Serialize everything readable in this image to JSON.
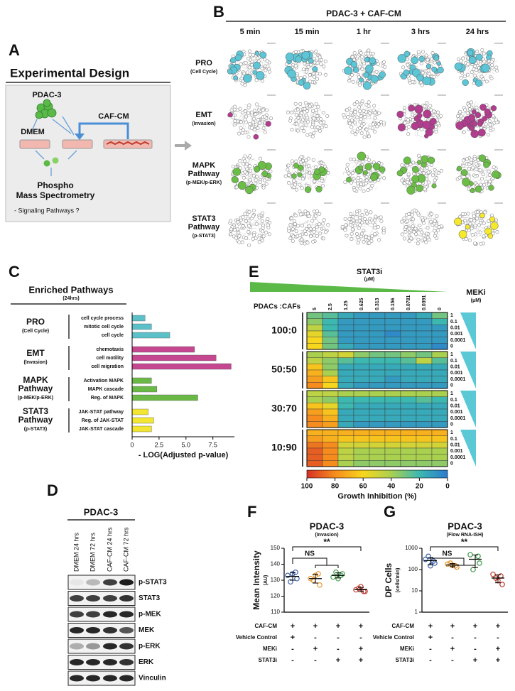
{
  "panel_a": {
    "letter": "A",
    "title": "Experimental Design",
    "cells": "PDAC-3",
    "control": "DMEM",
    "treatment": "CAF-CM",
    "output": [
      "Phospho",
      "Mass Spectrometry"
    ],
    "question": "- Signaling Pathways ?"
  },
  "panel_b": {
    "letter": "B",
    "title": "PDAC-3 + CAF-CM",
    "columns": [
      "5 min",
      "15 min",
      "1 hr",
      "3 hrs",
      "24 hrs"
    ],
    "rows": [
      {
        "name": [
          "PRO"
        ],
        "sub": "(Cell Cycle)",
        "color": "#5cc5d6"
      },
      {
        "name": [
          "EMT"
        ],
        "sub": "(Invasion)",
        "color": "#b23c8e"
      },
      {
        "name": [
          "MAPK",
          "Pathway"
        ],
        "sub": "(p-MEK/p-ERK)",
        "color": "#6abd45"
      },
      {
        "name": [
          "STAT3",
          "Pathway"
        ],
        "sub": "(p-STAT3)",
        "color": "#f5e92a"
      }
    ]
  },
  "panel_d": {
    "letter": "D",
    "title": "PDAC-3",
    "lanes": [
      "DMEM 24 hrs",
      "DMEM 72 hrs",
      "CAF-CM 24 hrs",
      "CAF-CM 72 hrs"
    ],
    "blots": [
      "p-STAT3",
      "STAT3",
      "p-MEK",
      "MEK",
      "p-ERK",
      "ERK",
      "Vinculin"
    ]
  },
  "chart_data": [
    {
      "panel": "C",
      "type": "bar",
      "orientation": "horizontal",
      "title": "Enriched Pathways",
      "subtitle": "(24hrs)",
      "x_label": "- LOG(Adjusted p-value)",
      "xlim": [
        0,
        9.5
      ],
      "xticks": [
        0,
        2.5,
        {
          "value": 5,
          "label": "5.0"
        },
        7.5
      ],
      "groups": [
        {
          "name": [
            "PRO"
          ],
          "sub": "(Cell Cycle)",
          "color": "#5bc0c8",
          "categories": [
            "cell cycle process",
            "mitotic cell cycle",
            "cell cycle"
          ],
          "values": [
            1.2,
            1.8,
            3.5
          ]
        },
        {
          "name": [
            "EMT"
          ],
          "sub": "(Invasion)",
          "color": "#c5478f",
          "categories": [
            "chemotaxis",
            "cell motility",
            "cell migration"
          ],
          "values": [
            5.8,
            7.8,
            9.2
          ]
        },
        {
          "name": [
            "MAPK",
            "Pathway"
          ],
          "sub": "(p-MEK/p-ERK)",
          "color": "#6ab845",
          "categories": [
            "Activation MAPK",
            "MAPK cascade",
            "Reg. of MAPK"
          ],
          "values": [
            1.8,
            2.3,
            6.1
          ]
        },
        {
          "name": [
            "STAT3",
            "Pathway"
          ],
          "sub": "(p-STAT3)",
          "color": "#f3e633",
          "categories": [
            "JAK-STAT pathway",
            "Reg. of JAK-STAT",
            "JAK-STAT cascade"
          ],
          "values": [
            1.5,
            2.0,
            1.8
          ]
        }
      ]
    },
    {
      "panel": "E",
      "type": "heatmap",
      "x_label": "STAT3i",
      "x_unit": "(μM)",
      "y_label": "MEKi",
      "y_unit": "(μM)",
      "corner_label": "PDACs :CAFs",
      "columns": [
        5,
        2.5,
        1.25,
        0.625,
        0.313,
        0.156,
        0.0781,
        0.0391,
        0
      ],
      "rows": [
        1,
        0.1,
        0.01,
        0.001,
        0.0001,
        0
      ],
      "blocks": [
        {
          "label": "100:0",
          "values": [
            [
              30,
              25,
              15,
              10,
              10,
              10,
              10,
              15,
              30
            ],
            [
              35,
              20,
              10,
              10,
              10,
              10,
              10,
              10,
              20
            ],
            [
              45,
              20,
              10,
              10,
              10,
              10,
              10,
              10,
              10
            ],
            [
              55,
              25,
              10,
              10,
              10,
              5,
              10,
              10,
              10
            ],
            [
              60,
              30,
              10,
              10,
              10,
              10,
              10,
              10,
              10
            ],
            [
              60,
              30,
              15,
              10,
              10,
              10,
              10,
              10,
              5
            ]
          ]
        },
        {
          "label": "50:50",
          "values": [
            [
              40,
              45,
              50,
              35,
              30,
              30,
              35,
              30,
              40
            ],
            [
              45,
              35,
              25,
              20,
              20,
              20,
              25,
              45,
              25
            ],
            [
              65,
              35,
              15,
              15,
              15,
              15,
              15,
              15,
              15
            ],
            [
              70,
              40,
              15,
              15,
              15,
              15,
              15,
              15,
              15
            ],
            [
              75,
              65,
              15,
              15,
              15,
              10,
              15,
              15,
              15
            ],
            [
              80,
              60,
              15,
              10,
              10,
              10,
              10,
              10,
              10
            ]
          ]
        },
        {
          "label": "30:70",
          "values": [
            [
              45,
              45,
              40,
              40,
              40,
              40,
              40,
              40,
              40
            ],
            [
              40,
              35,
              20,
              20,
              20,
              20,
              20,
              25,
              20
            ],
            [
              65,
              55,
              20,
              15,
              15,
              15,
              15,
              15,
              15
            ],
            [
              75,
              65,
              15,
              15,
              15,
              15,
              15,
              15,
              15
            ],
            [
              80,
              70,
              15,
              15,
              15,
              15,
              15,
              15,
              15
            ],
            [
              80,
              75,
              15,
              10,
              10,
              10,
              10,
              10,
              10
            ]
          ]
        },
        {
          "label": "10:90",
          "values": [
            [
              70,
              70,
              70,
              70,
              70,
              70,
              70,
              70,
              70
            ],
            [
              75,
              70,
              65,
              65,
              65,
              65,
              65,
              65,
              65
            ],
            [
              85,
              80,
              50,
              50,
              50,
              50,
              50,
              50,
              50
            ],
            [
              90,
              80,
              45,
              40,
              40,
              40,
              40,
              40,
              40
            ],
            [
              90,
              80,
              45,
              40,
              40,
              40,
              40,
              40,
              40
            ],
            [
              90,
              80,
              40,
              35,
              35,
              35,
              35,
              35,
              35
            ]
          ]
        }
      ],
      "colorbar": {
        "label": "Growth Inhibition (%)",
        "lim": [
          100,
          0
        ],
        "ticks": [
          100,
          80,
          60,
          40,
          20,
          0
        ]
      }
    },
    {
      "panel": "F",
      "type": "dotplot",
      "title": "PDAC-3",
      "subtitle": "(Invasion)",
      "y_label": "Mean Intensity",
      "y_unit": "(AU)",
      "ylim": [
        110,
        150
      ],
      "yticks": [
        110,
        120,
        130,
        140,
        150
      ],
      "log_scale": false,
      "annotations": [
        "NS",
        "**"
      ],
      "series": [
        {
          "color": "#3b5ea8",
          "values": [
            133,
            131,
            129,
            135,
            134
          ],
          "mean": 132.4,
          "error": 2.4
        },
        {
          "color": "#e3952a",
          "values": [
            131,
            127,
            130,
            134,
            133
          ],
          "mean": 131,
          "error": 2.8
        },
        {
          "color": "#3d9a47",
          "values": [
            132,
            134,
            135,
            133,
            131
          ],
          "mean": 133,
          "error": 1.6
        },
        {
          "color": "#c0392b",
          "values": [
            124,
            123,
            125,
            123,
            126
          ],
          "mean": 124.2,
          "error": 1.3
        }
      ],
      "conditions": [
        {
          "label": "CAF-CM",
          "signs": [
            "+",
            "+",
            "+",
            "+"
          ]
        },
        {
          "label": "Vehicle Control",
          "signs": [
            "+",
            "-",
            "-",
            "-"
          ]
        },
        {
          "label": "MEKi",
          "signs": [
            "-",
            "+",
            "-",
            "+"
          ]
        },
        {
          "label": "STAT3i",
          "signs": [
            "-",
            "-",
            "+",
            "+"
          ]
        }
      ]
    },
    {
      "panel": "G",
      "type": "dotplot",
      "title": "PDAC-3",
      "subtitle": "(Flow RNA-ISH)",
      "y_label": "DP Cells",
      "y_unit": "(cells/min)",
      "ylim": [
        1,
        1000
      ],
      "yticks": [
        1,
        10,
        100,
        1000
      ],
      "log_scale": true,
      "annotations": [
        "NS",
        "**"
      ],
      "series": [
        {
          "color": "#3b5ea8",
          "values": [
            300,
            200,
            420,
            250,
            150
          ],
          "mean": 264,
          "error": 100
        },
        {
          "color": "#e3952a",
          "values": [
            180,
            130,
            200,
            150,
            160
          ],
          "mean": 164,
          "error": 27
        },
        {
          "color": "#3d9a47",
          "values": [
            500,
            200,
            100,
            420
          ],
          "mean": 305,
          "error": 180
        },
        {
          "color": "#c0392b",
          "values": [
            60,
            20,
            40,
            50,
            30
          ],
          "mean": 40,
          "error": 16
        }
      ],
      "conditions": [
        {
          "label": "CAF-CM",
          "signs": [
            "+",
            "+",
            "+",
            "+"
          ]
        },
        {
          "label": "Vehicle Control",
          "signs": [
            "+",
            "-",
            "-",
            "-"
          ]
        },
        {
          "label": "MEKi",
          "signs": [
            "-",
            "+",
            "-",
            "+"
          ]
        },
        {
          "label": "STAT3i",
          "signs": [
            "-",
            "-",
            "+",
            "+"
          ]
        }
      ]
    }
  ]
}
